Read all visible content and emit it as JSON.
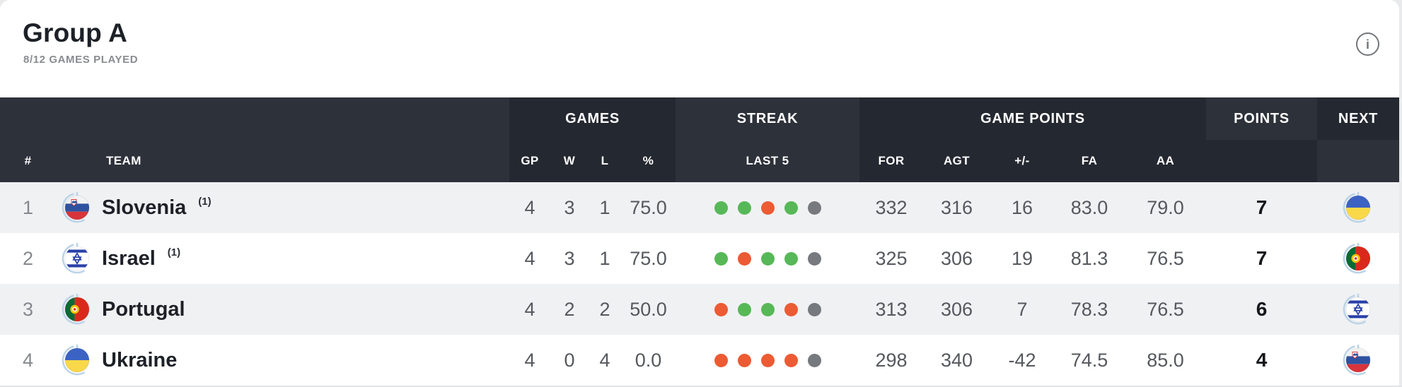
{
  "header": {
    "title": "Group A",
    "subtitle": "8/12 GAMES PLAYED",
    "info_icon": "i"
  },
  "table": {
    "groups": [
      {
        "label": ""
      },
      {
        "label": "GAMES"
      },
      {
        "label": "STREAK"
      },
      {
        "label": "GAME POINTS"
      },
      {
        "label": "POINTS"
      },
      {
        "label": "NEXT"
      }
    ],
    "columns": {
      "rank": "#",
      "team": "TEAM",
      "gp": "GP",
      "w": "W",
      "l": "L",
      "pct": "%",
      "last5": "LAST 5",
      "for": "FOR",
      "agt": "AGT",
      "plusminus": "+/-",
      "fa": "FA",
      "aa": "AA"
    },
    "streak_colors": {
      "W": "#57b857",
      "L": "#ec5b33",
      "-": "#76797e"
    },
    "ring_color": "#bcd4e8",
    "rows": [
      {
        "rank": "1",
        "team": "Slovenia",
        "seed": "(1)",
        "flag": "slovenia",
        "gp": "4",
        "w": "3",
        "l": "1",
        "pct": "75.0",
        "last5": [
          "W",
          "W",
          "L",
          "W",
          "-"
        ],
        "for": "332",
        "agt": "316",
        "plusminus": "16",
        "fa": "83.0",
        "aa": "79.0",
        "points": "7",
        "next_flag": "ukraine"
      },
      {
        "rank": "2",
        "team": "Israel",
        "seed": "(1)",
        "flag": "israel",
        "gp": "4",
        "w": "3",
        "l": "1",
        "pct": "75.0",
        "last5": [
          "W",
          "L",
          "W",
          "W",
          "-"
        ],
        "for": "325",
        "agt": "306",
        "plusminus": "19",
        "fa": "81.3",
        "aa": "76.5",
        "points": "7",
        "next_flag": "portugal"
      },
      {
        "rank": "3",
        "team": "Portugal",
        "seed": "",
        "flag": "portugal",
        "gp": "4",
        "w": "2",
        "l": "2",
        "pct": "50.0",
        "last5": [
          "L",
          "W",
          "W",
          "L",
          "-"
        ],
        "for": "313",
        "agt": "306",
        "plusminus": "7",
        "fa": "78.3",
        "aa": "76.5",
        "points": "6",
        "next_flag": "israel"
      },
      {
        "rank": "4",
        "team": "Ukraine",
        "seed": "",
        "flag": "ukraine",
        "gp": "4",
        "w": "0",
        "l": "4",
        "pct": "0.0",
        "last5": [
          "L",
          "L",
          "L",
          "L",
          "-"
        ],
        "for": "298",
        "agt": "340",
        "plusminus": "-42",
        "fa": "74.5",
        "aa": "85.0",
        "points": "4",
        "next_flag": "slovenia"
      }
    ]
  }
}
